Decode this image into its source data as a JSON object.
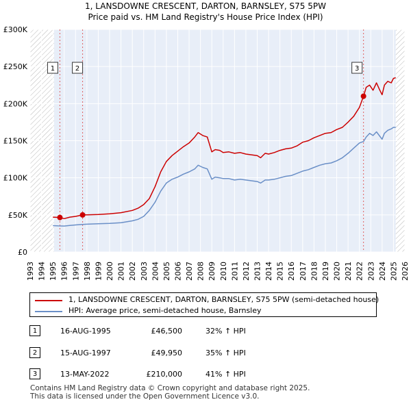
{
  "title_line1": "1, LANSDOWNE CRESCENT, DARTON, BARNSLEY, S75 5PW",
  "title_line2": "Price paid vs. HM Land Registry's House Price Index (HPI)",
  "legend": [
    {
      "label": "1, LANSDOWNE CRESCENT, DARTON, BARNSLEY, S75 5PW (semi-detached house)",
      "color": "#cc0000"
    },
    {
      "label": "HPI: Average price, semi-detached house, Barnsley",
      "color": "#6a8fc7"
    }
  ],
  "transactions": [
    {
      "badge": "1",
      "date": "16-AUG-1995",
      "price": "£46,500",
      "hpi": "32% ↑ HPI"
    },
    {
      "badge": "2",
      "date": "15-AUG-1997",
      "price": "£49,950",
      "hpi": "35% ↑ HPI"
    },
    {
      "badge": "3",
      "date": "13-MAY-2022",
      "price": "£210,000",
      "hpi": "41% ↑ HPI"
    }
  ],
  "footer_line1": "Contains HM Land Registry data © Crown copyright and database right 2025.",
  "footer_line2": "This data is licensed under the Open Government Licence v3.0.",
  "chart_data": {
    "type": "line",
    "title": "1, LANSDOWNE CRESCENT, DARTON, BARNSLEY, S75 5PW — Price paid vs. HM Land Registry's House Price Index (HPI)",
    "xlabel": "",
    "ylabel": "",
    "xlim": [
      1993,
      2026
    ],
    "ylim": [
      0,
      300000
    ],
    "x_ticks": [
      "1993",
      "1994",
      "1995",
      "1996",
      "1997",
      "1998",
      "1999",
      "2000",
      "2001",
      "2002",
      "2003",
      "2004",
      "2005",
      "2006",
      "2007",
      "2008",
      "2009",
      "2010",
      "2011",
      "2012",
      "2013",
      "2014",
      "2015",
      "2016",
      "2017",
      "2018",
      "2019",
      "2020",
      "2021",
      "2022",
      "2023",
      "2024",
      "2025",
      "2026"
    ],
    "y_ticks": [
      {
        "value": 0,
        "label": "£0"
      },
      {
        "value": 50000,
        "label": "£50K"
      },
      {
        "value": 100000,
        "label": "£100K"
      },
      {
        "value": 150000,
        "label": "£150K"
      },
      {
        "value": 200000,
        "label": "£200K"
      },
      {
        "value": 250000,
        "label": "£250K"
      },
      {
        "value": 300000,
        "label": "£300K"
      }
    ],
    "hatched_ranges": [
      [
        1993,
        1995.1
      ],
      [
        2025.2,
        2026
      ]
    ],
    "series": [
      {
        "name": "1, LANSDOWNE CRESCENT, DARTON, BARNSLEY, S75 5PW (semi-detached house)",
        "color": "#cc0000",
        "x": [
          1995.0,
          1995.62,
          1996.0,
          1996.5,
          1997.0,
          1997.62,
          1998.0,
          1999.0,
          2000.0,
          2001.0,
          2002.0,
          2002.5,
          2003.0,
          2003.5,
          2004.0,
          2004.5,
          2005.0,
          2005.5,
          2006.0,
          2006.5,
          2007.0,
          2007.5,
          2007.8,
          2008.2,
          2008.6,
          2009.0,
          2009.3,
          2009.7,
          2010.0,
          2010.5,
          2011.0,
          2011.5,
          2012.0,
          2012.5,
          2013.0,
          2013.3,
          2013.7,
          2014.0,
          2014.5,
          2015.0,
          2015.5,
          2016.0,
          2016.5,
          2017.0,
          2017.5,
          2018.0,
          2018.5,
          2019.0,
          2019.5,
          2020.0,
          2020.5,
          2021.0,
          2021.5,
          2022.0,
          2022.36,
          2022.6,
          2022.9,
          2023.2,
          2023.5,
          2023.8,
          2024.0,
          2024.2,
          2024.5,
          2024.8,
          2025.0,
          2025.2
        ],
        "values": [
          47000,
          46500,
          45000,
          47000,
          48000,
          49950,
          50000,
          50500,
          51500,
          53000,
          56000,
          59000,
          64000,
          72000,
          88000,
          108000,
          122000,
          130000,
          136000,
          142000,
          147000,
          155000,
          161000,
          157000,
          155000,
          135000,
          138000,
          137000,
          134000,
          135000,
          133000,
          134000,
          132000,
          131000,
          130000,
          127000,
          133000,
          132000,
          134000,
          137000,
          139000,
          140000,
          143000,
          148000,
          150000,
          154000,
          157000,
          160000,
          161000,
          165000,
          168000,
          175000,
          183000,
          195000,
          210000,
          222000,
          225000,
          218000,
          228000,
          218000,
          212000,
          225000,
          230000,
          228000,
          234000,
          235000
        ]
      },
      {
        "name": "HPI: Average price, semi-detached house, Barnsley",
        "color": "#6a8fc7",
        "x": [
          1995.0,
          1995.5,
          1996.0,
          1996.5,
          1997.0,
          1997.5,
          1998.0,
          1999.0,
          2000.0,
          2001.0,
          2002.0,
          2002.5,
          2003.0,
          2003.5,
          2004.0,
          2004.5,
          2005.0,
          2005.5,
          2006.0,
          2006.5,
          2007.0,
          2007.5,
          2007.8,
          2008.2,
          2008.6,
          2009.0,
          2009.3,
          2009.7,
          2010.0,
          2010.5,
          2011.0,
          2011.5,
          2012.0,
          2012.5,
          2013.0,
          2013.3,
          2013.7,
          2014.0,
          2014.5,
          2015.0,
          2015.5,
          2016.0,
          2016.5,
          2017.0,
          2017.5,
          2018.0,
          2018.5,
          2019.0,
          2019.5,
          2020.0,
          2020.5,
          2021.0,
          2021.5,
          2022.0,
          2022.36,
          2022.6,
          2022.9,
          2023.2,
          2023.5,
          2023.8,
          2024.0,
          2024.2,
          2024.5,
          2024.8,
          2025.0,
          2025.2
        ],
        "values": [
          35500,
          35200,
          35000,
          35800,
          36500,
          37000,
          37500,
          38000,
          38500,
          39500,
          42000,
          44000,
          48000,
          56000,
          67000,
          82000,
          93000,
          98000,
          101000,
          105000,
          108000,
          112000,
          117000,
          114000,
          112000,
          98000,
          101000,
          100000,
          99000,
          99000,
          97000,
          98000,
          97000,
          96000,
          95000,
          93000,
          97000,
          97000,
          98000,
          100000,
          102000,
          103000,
          106000,
          109000,
          111000,
          114000,
          117000,
          119000,
          120000,
          123000,
          127000,
          133000,
          140000,
          147000,
          149000,
          155000,
          160000,
          157000,
          162000,
          156000,
          152000,
          160000,
          164000,
          166000,
          168000,
          168000
        ]
      }
    ],
    "sales": [
      {
        "label": "1",
        "x": 1995.62,
        "value": 46500
      },
      {
        "label": "2",
        "x": 1997.62,
        "value": 49950
      },
      {
        "label": "3",
        "x": 2022.36,
        "value": 210000
      }
    ]
  }
}
